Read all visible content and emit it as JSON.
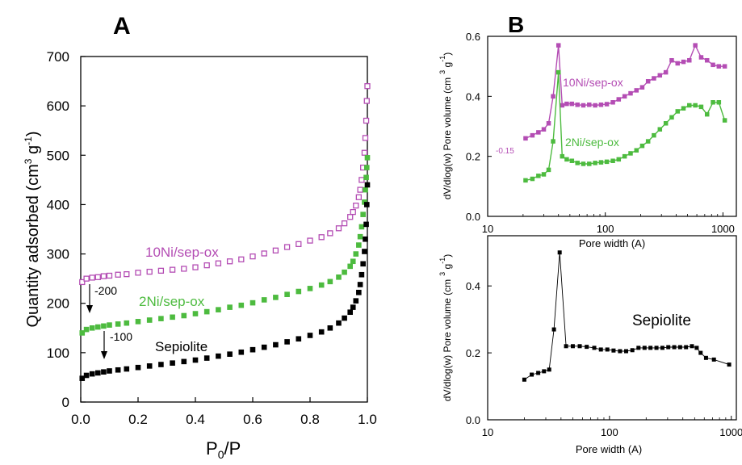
{
  "chart_data": [
    {
      "panel_label": "A",
      "type": "scatter",
      "xlabel_main": "P",
      "xlabel_sub": "0",
      "xlabel_tail": "/P",
      "ylabel_main": "Quantity adsorbed (cm",
      "ylabel_sup3": "3",
      "ylabel_mid": " g",
      "ylabel_sup": "-1",
      "ylabel_tail": ")",
      "xlim": [
        0.0,
        1.0
      ],
      "ylim": [
        0,
        700
      ],
      "xticks": [
        0.0,
        0.2,
        0.4,
        0.6,
        0.8,
        1.0
      ],
      "xtick_labels": [
        "0.0",
        "0.2",
        "0.4",
        "0.6",
        "0.8",
        "1.0"
      ],
      "yticks": [
        0,
        100,
        200,
        300,
        400,
        500,
        600,
        700
      ],
      "ytick_labels": [
        "0",
        "100",
        "200",
        "300",
        "400",
        "500",
        "600",
        "700"
      ],
      "grid": false,
      "series": [
        {
          "name": "10Ni/sep-ox",
          "color": "#b44db4",
          "marker": "open-square",
          "x": [
            0.005,
            0.02,
            0.04,
            0.06,
            0.08,
            0.1,
            0.13,
            0.16,
            0.2,
            0.24,
            0.28,
            0.32,
            0.36,
            0.4,
            0.44,
            0.48,
            0.52,
            0.56,
            0.6,
            0.64,
            0.68,
            0.72,
            0.76,
            0.8,
            0.84,
            0.87,
            0.9,
            0.92,
            0.94,
            0.95,
            0.96,
            0.97,
            0.975,
            0.98,
            0.985,
            0.99,
            0.993,
            0.996,
            0.998,
            1.0
          ],
          "y": [
            243,
            250,
            252,
            253,
            255,
            256,
            258,
            259,
            262,
            264,
            266,
            268,
            270,
            273,
            277,
            281,
            285,
            289,
            295,
            301,
            307,
            314,
            320,
            327,
            334,
            342,
            352,
            362,
            375,
            385,
            398,
            415,
            430,
            450,
            475,
            505,
            535,
            570,
            610,
            640
          ]
        },
        {
          "name": "2Ni/sep-ox",
          "color": "#4dbb3f",
          "marker": "filled-square",
          "x": [
            0.005,
            0.02,
            0.04,
            0.06,
            0.08,
            0.1,
            0.13,
            0.16,
            0.2,
            0.24,
            0.28,
            0.32,
            0.36,
            0.4,
            0.44,
            0.48,
            0.52,
            0.56,
            0.6,
            0.64,
            0.68,
            0.72,
            0.76,
            0.8,
            0.84,
            0.87,
            0.9,
            0.92,
            0.94,
            0.95,
            0.96,
            0.97,
            0.975,
            0.98,
            0.985,
            0.99,
            0.993,
            0.996,
            0.998,
            1.0
          ],
          "y": [
            140,
            147,
            150,
            152,
            154,
            156,
            158,
            160,
            163,
            166,
            169,
            172,
            175,
            179,
            183,
            187,
            192,
            196,
            201,
            207,
            212,
            218,
            224,
            230,
            237,
            244,
            253,
            263,
            275,
            285,
            300,
            318,
            335,
            355,
            380,
            405,
            430,
            455,
            475,
            495
          ]
        },
        {
          "name": "Sepiolite",
          "color": "#000000",
          "marker": "filled-square",
          "x": [
            0.005,
            0.02,
            0.04,
            0.06,
            0.08,
            0.1,
            0.13,
            0.16,
            0.2,
            0.24,
            0.28,
            0.32,
            0.36,
            0.4,
            0.44,
            0.48,
            0.52,
            0.56,
            0.6,
            0.64,
            0.68,
            0.72,
            0.76,
            0.8,
            0.84,
            0.87,
            0.9,
            0.92,
            0.94,
            0.95,
            0.96,
            0.97,
            0.975,
            0.98,
            0.985,
            0.99,
            0.993,
            0.996,
            0.998,
            1.0
          ],
          "y": [
            48,
            54,
            57,
            59,
            61,
            63,
            65,
            67,
            70,
            73,
            76,
            79,
            82,
            85,
            89,
            93,
            97,
            101,
            106,
            111,
            116,
            122,
            128,
            135,
            142,
            150,
            160,
            170,
            182,
            192,
            205,
            222,
            238,
            258,
            280,
            305,
            330,
            360,
            400,
            440
          ]
        }
      ],
      "annotations": [
        {
          "text": "10Ni/sep-ox",
          "color": "#b44db4"
        },
        {
          "text": "2Ni/sep-ox",
          "color": "#4dbb3f"
        },
        {
          "text": "Sepiolite",
          "color": "#000000"
        },
        {
          "text": "-200",
          "color": "#000000"
        },
        {
          "text": "-100",
          "color": "#000000"
        }
      ]
    },
    {
      "panel_label": "B",
      "type": "line",
      "xscale": "log",
      "xlabel": "Pore width (A)",
      "ylabel_main": "dV/dlog(w) Pore volume (cm",
      "ylabel_sup3": "3",
      "ylabel_mid": " g",
      "ylabel_sup": "-1",
      "ylabel_tail": ")",
      "xlim": [
        10,
        1300
      ],
      "ylim": [
        0,
        0.6
      ],
      "xticks": [
        10,
        100,
        1000
      ],
      "xtick_labels": [
        "10",
        "100",
        "1000"
      ],
      "yticks": [
        0.0,
        0.2,
        0.4,
        0.6
      ],
      "ytick_labels": [
        "0.0",
        "0.2",
        "0.4",
        "0.6"
      ],
      "grid": false,
      "series": [
        {
          "name": "10Ni/sep-ox",
          "color": "#b44db4",
          "x": [
            21,
            24,
            27,
            30,
            33,
            36,
            40,
            43,
            47,
            52,
            58,
            65,
            73,
            82,
            92,
            103,
            116,
            130,
            146,
            164,
            184,
            206,
            231,
            259,
            291,
            327,
            367,
            412,
            462,
            518,
            582,
            653,
            733,
            823,
            923,
            1036
          ],
          "y": [
            0.26,
            0.27,
            0.28,
            0.29,
            0.31,
            0.4,
            0.57,
            0.37,
            0.375,
            0.375,
            0.372,
            0.37,
            0.372,
            0.37,
            0.372,
            0.374,
            0.38,
            0.39,
            0.4,
            0.41,
            0.42,
            0.43,
            0.45,
            0.46,
            0.47,
            0.48,
            0.52,
            0.51,
            0.515,
            0.52,
            0.57,
            0.53,
            0.52,
            0.505,
            0.5,
            0.5
          ]
        },
        {
          "name": "2Ni/sep-ox",
          "color": "#4dbb3f",
          "x": [
            21,
            24,
            27,
            30,
            33,
            36,
            40,
            43,
            47,
            52,
            58,
            65,
            73,
            82,
            92,
            103,
            116,
            130,
            146,
            164,
            184,
            206,
            231,
            259,
            291,
            327,
            367,
            412,
            462,
            518,
            582,
            653,
            733,
            823,
            923,
            1036
          ],
          "y": [
            0.12,
            0.125,
            0.135,
            0.14,
            0.155,
            0.25,
            0.48,
            0.2,
            0.19,
            0.185,
            0.178,
            0.175,
            0.175,
            0.178,
            0.18,
            0.182,
            0.185,
            0.19,
            0.2,
            0.21,
            0.22,
            0.235,
            0.25,
            0.27,
            0.29,
            0.31,
            0.33,
            0.35,
            0.36,
            0.37,
            0.37,
            0.365,
            0.34,
            0.38,
            0.38,
            0.32
          ]
        }
      ],
      "annotations": [
        {
          "text": "10Ni/sep-ox",
          "color": "#b44db4"
        },
        {
          "text": "2Ni/sep-ox",
          "color": "#4dbb3f"
        },
        {
          "text": "-0.15",
          "color": "#b44db4"
        }
      ]
    },
    {
      "type": "line",
      "xscale": "log",
      "xlabel": "Pore width (A)",
      "ylabel_main": "dV/dlog(w) Pore volume (cm",
      "ylabel_sup3": "3",
      "ylabel_mid": " g",
      "ylabel_sup": "-1",
      "ylabel_tail": ")",
      "xlim": [
        10,
        1100
      ],
      "ylim": [
        0,
        0.55
      ],
      "xticks": [
        10,
        100,
        1000
      ],
      "xtick_labels": [
        "10",
        "100",
        "1000"
      ],
      "yticks": [
        0.0,
        0.2,
        0.4
      ],
      "ytick_labels": [
        "0.0",
        "0.2",
        "0.4"
      ],
      "grid": false,
      "series": [
        {
          "name": "Sepiolite",
          "color": "#000000",
          "x": [
            20,
            23,
            26,
            29,
            32,
            35,
            39,
            44,
            50,
            57,
            65,
            75,
            85,
            96,
            108,
            122,
            137,
            154,
            173,
            194,
            217,
            243,
            272,
            304,
            340,
            380,
            425,
            475,
            520,
            560,
            620,
            720,
            960
          ],
          "y": [
            0.12,
            0.135,
            0.14,
            0.145,
            0.15,
            0.27,
            0.5,
            0.22,
            0.22,
            0.22,
            0.218,
            0.215,
            0.21,
            0.21,
            0.207,
            0.205,
            0.205,
            0.208,
            0.215,
            0.215,
            0.215,
            0.215,
            0.215,
            0.217,
            0.217,
            0.217,
            0.217,
            0.22,
            0.215,
            0.2,
            0.185,
            0.18,
            0.165
          ]
        }
      ],
      "annotations": [
        {
          "text": "Sepiolite",
          "color": "#000000"
        }
      ]
    }
  ]
}
